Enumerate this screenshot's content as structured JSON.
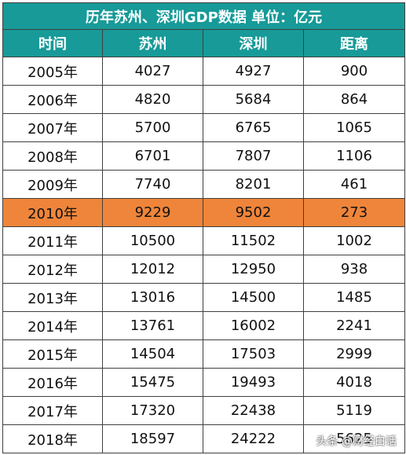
{
  "chart_data": {
    "type": "table",
    "title": "历年苏州、深圳GDP数据  单位：亿元",
    "columns": [
      "时间",
      "苏州",
      "深圳",
      "距离"
    ],
    "highlight_row": 5,
    "highlight_color": "#ef853a",
    "header_color": "#179a98",
    "rows": [
      [
        "2005年",
        "4027",
        "4927",
        "900"
      ],
      [
        "2006年",
        "4820",
        "5684",
        "864"
      ],
      [
        "2007年",
        "5700",
        "6765",
        "1065"
      ],
      [
        "2008年",
        "6701",
        "7807",
        "1106"
      ],
      [
        "2009年",
        "7740",
        "8201",
        "461"
      ],
      [
        "2010年",
        "9229",
        "9502",
        "273"
      ],
      [
        "2011年",
        "10500",
        "11502",
        "1002"
      ],
      [
        "2012年",
        "12012",
        "12950",
        "938"
      ],
      [
        "2013年",
        "13016",
        "14500",
        "1485"
      ],
      [
        "2014年",
        "13761",
        "16002",
        "2241"
      ],
      [
        "2015年",
        "14504",
        "17503",
        "2999"
      ],
      [
        "2016年",
        "15475",
        "19493",
        "4018"
      ],
      [
        "2017年",
        "17320",
        "22438",
        "5119"
      ],
      [
        "2018年",
        "18597",
        "24222",
        "5625"
      ]
    ]
  },
  "watermark": "头条 @财经白话"
}
